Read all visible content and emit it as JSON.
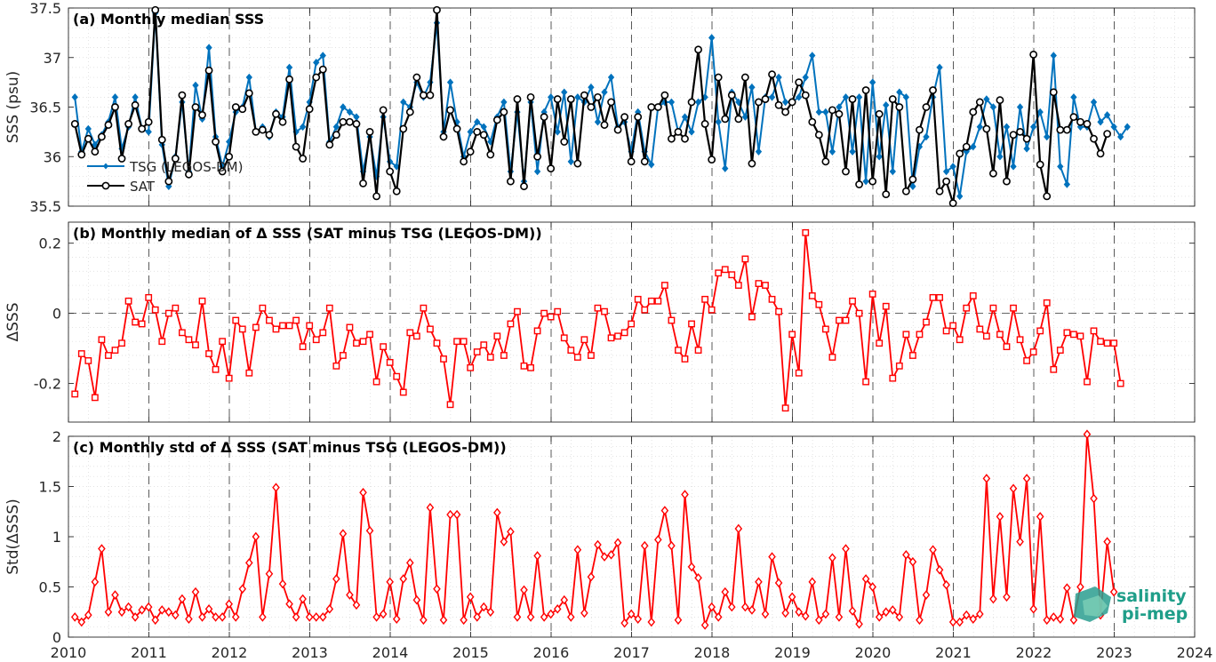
{
  "logo": {
    "line1": "salinity",
    "line2": "pi-mep",
    "color": "#1f9e89"
  },
  "x_axis": {
    "min": 2010,
    "max": 2024,
    "ticks": [
      2010,
      2011,
      2012,
      2013,
      2014,
      2015,
      2016,
      2017,
      2018,
      2019,
      2020,
      2021,
      2022,
      2023,
      2024
    ],
    "tick_labels": [
      "2010",
      "2011",
      "2012",
      "2013",
      "2014",
      "2015",
      "2016",
      "2017",
      "2018",
      "2019",
      "2020",
      "2021",
      "2022",
      "2023",
      "2024"
    ]
  },
  "chart_data": [
    {
      "type": "line",
      "title": "(a) Monthly median SSS",
      "ylabel": "SSS (psu)",
      "ylim": [
        35.5,
        37.5
      ],
      "yticks": [
        35.5,
        36,
        36.5,
        37,
        37.5
      ],
      "ytick_labels": [
        "35.5",
        "36",
        "36.5",
        "37",
        "37.5"
      ],
      "grid": true,
      "legend": {
        "placement": "left-middle",
        "entries": [
          "TSG (LEGOS-DM)",
          "SAT"
        ]
      },
      "series": [
        {
          "name": "TSG (LEGOS-DM)",
          "color": "#0072bd",
          "marker": "diamond",
          "values": [
            36.6,
            36.05,
            36.28,
            36.12,
            36.22,
            36.35,
            36.6,
            36.08,
            36.3,
            36.6,
            36.28,
            36.25,
            37.45,
            36.12,
            35.7,
            36.0,
            36.55,
            35.85,
            36.72,
            36.38,
            37.1,
            36.2,
            35.9,
            36.15,
            36.45,
            36.5,
            36.8,
            36.25,
            36.3,
            36.2,
            36.45,
            36.4,
            36.9,
            36.25,
            36.3,
            36.55,
            36.95,
            37.02,
            36.15,
            36.3,
            36.5,
            36.45,
            36.4,
            35.85,
            36.2,
            35.8,
            36.4,
            35.95,
            35.9,
            36.55,
            36.5,
            36.75,
            36.6,
            36.75,
            37.35,
            36.25,
            36.75,
            36.35,
            36.0,
            36.25,
            36.35,
            36.3,
            36.15,
            36.4,
            36.55,
            35.85,
            36.45,
            35.75,
            36.55,
            35.85,
            36.45,
            36.6,
            36.25,
            36.65,
            35.95,
            36.6,
            36.55,
            36.7,
            36.35,
            36.65,
            36.8,
            36.3,
            36.35,
            36.05,
            36.45,
            36.05,
            35.92,
            36.5,
            36.55,
            36.55,
            36.25,
            36.4,
            36.25,
            36.55,
            36.6,
            37.2,
            36.35,
            35.88,
            36.65,
            36.55,
            36.4,
            36.7,
            36.05,
            36.6,
            36.6,
            36.8,
            36.55,
            36.55,
            36.6,
            36.8,
            37.02,
            36.45,
            36.45,
            36.05,
            36.5,
            36.6,
            36.05,
            36.6,
            35.75,
            36.75,
            36.0,
            36.52,
            35.85,
            36.65,
            36.6,
            35.7,
            36.1,
            36.2,
            36.6,
            36.9,
            35.85,
            35.9,
            35.6,
            36.05,
            36.1,
            36.3,
            36.58,
            36.5,
            36.0,
            36.3,
            35.9,
            36.5,
            36.08,
            36.3,
            36.45,
            36.2,
            37.02,
            35.9,
            35.72,
            36.6,
            36.3,
            36.3,
            36.55,
            36.35,
            36.42,
            36.3,
            36.2,
            36.3
          ],
          "x_start": 2010.08,
          "x_step": 0.08333
        },
        {
          "name": "SAT",
          "color": "#000000",
          "marker": "circle",
          "values": [
            36.33,
            36.02,
            36.18,
            36.05,
            36.2,
            36.32,
            36.5,
            35.98,
            36.33,
            36.52,
            36.28,
            36.35,
            37.48,
            36.17,
            35.75,
            35.98,
            36.62,
            35.82,
            36.5,
            36.42,
            36.87,
            36.15,
            35.85,
            36.0,
            36.5,
            36.48,
            36.64,
            36.25,
            36.27,
            36.22,
            36.43,
            36.35,
            36.78,
            36.1,
            35.98,
            36.48,
            36.8,
            36.88,
            36.12,
            36.22,
            36.35,
            36.35,
            36.33,
            35.73,
            36.25,
            35.6,
            36.47,
            35.85,
            35.65,
            36.28,
            36.45,
            36.8,
            36.62,
            36.62,
            37.48,
            36.2,
            36.47,
            36.28,
            35.95,
            36.05,
            36.25,
            36.22,
            36.02,
            36.37,
            36.45,
            35.75,
            36.58,
            35.7,
            36.6,
            36.0,
            36.4,
            35.88,
            36.58,
            36.15,
            36.58,
            35.93,
            36.62,
            36.5,
            36.6,
            36.32,
            36.55,
            36.27,
            36.4,
            35.95,
            36.4,
            35.95,
            36.5,
            36.5,
            36.62,
            36.18,
            36.25,
            36.18,
            36.55,
            37.08,
            36.33,
            35.97,
            36.8,
            36.38,
            36.62,
            36.38,
            36.8,
            35.93,
            36.55,
            36.58,
            36.83,
            36.52,
            36.45,
            36.55,
            36.75,
            36.62,
            36.35,
            36.22,
            35.95,
            36.47,
            36.43,
            35.85,
            36.58,
            35.72,
            36.67,
            35.75,
            36.43,
            35.62,
            36.58,
            36.5,
            35.65,
            35.77,
            36.27,
            36.5,
            36.67,
            35.65,
            35.75,
            35.53,
            36.03,
            36.1,
            36.45,
            36.55,
            36.28,
            35.83,
            36.57,
            35.75,
            36.22,
            36.25,
            36.18,
            37.03,
            35.92,
            35.6,
            36.65,
            36.27,
            36.27,
            36.4,
            36.35,
            36.33,
            36.18,
            36.03,
            36.23
          ],
          "x_start": 2010.08,
          "x_step": 0.08333
        }
      ]
    },
    {
      "type": "line",
      "title": "(b) Monthly median of Δ SSS (SAT minus TSG (LEGOS-DM))",
      "ylabel": "ΔSSS",
      "ylim": [
        -0.31,
        0.26
      ],
      "yticks": [
        -0.2,
        0,
        0.2
      ],
      "ytick_labels": [
        "-0.2",
        "0",
        "0.2"
      ],
      "grid": true,
      "series": [
        {
          "name": "",
          "color": "#ff0000",
          "marker": "square",
          "values": [
            -0.23,
            -0.115,
            -0.135,
            -0.24,
            -0.075,
            -0.12,
            -0.105,
            -0.085,
            0.035,
            -0.025,
            -0.03,
            0.045,
            0.01,
            -0.08,
            0.0,
            0.015,
            -0.055,
            -0.075,
            -0.09,
            0.035,
            -0.115,
            -0.16,
            -0.08,
            -0.185,
            -0.02,
            -0.045,
            -0.17,
            -0.04,
            0.015,
            -0.02,
            -0.045,
            -0.035,
            -0.035,
            -0.02,
            -0.095,
            -0.035,
            -0.075,
            -0.055,
            0.015,
            -0.15,
            -0.12,
            -0.04,
            -0.085,
            -0.08,
            -0.06,
            -0.195,
            -0.095,
            -0.14,
            -0.18,
            -0.225,
            -0.055,
            -0.065,
            0.015,
            -0.045,
            -0.085,
            -0.13,
            -0.26,
            -0.08,
            -0.08,
            -0.155,
            -0.11,
            -0.09,
            -0.125,
            -0.065,
            -0.12,
            -0.03,
            0.005,
            -0.15,
            -0.155,
            -0.05,
            0.0,
            -0.01,
            0.005,
            -0.07,
            -0.105,
            -0.125,
            -0.075,
            -0.12,
            0.015,
            0.005,
            -0.07,
            -0.065,
            -0.055,
            -0.03,
            0.04,
            0.01,
            0.035,
            0.035,
            0.08,
            -0.02,
            -0.105,
            -0.13,
            -0.03,
            -0.105,
            0.04,
            0.01,
            0.115,
            0.125,
            0.11,
            0.08,
            0.155,
            -0.01,
            0.085,
            0.08,
            0.04,
            0.005,
            -0.27,
            -0.06,
            -0.17,
            0.23,
            0.05,
            0.025,
            -0.045,
            -0.125,
            -0.02,
            -0.02,
            0.035,
            0.0,
            -0.195,
            0.055,
            -0.085,
            0.02,
            -0.185,
            -0.15,
            -0.06,
            -0.12,
            -0.06,
            -0.025,
            0.045,
            0.045,
            -0.05,
            -0.035,
            -0.075,
            0.015,
            0.05,
            -0.045,
            -0.065,
            0.015,
            -0.06,
            -0.095,
            0.015,
            -0.075,
            -0.135,
            -0.11,
            -0.05,
            0.03,
            -0.16,
            -0.105,
            -0.055,
            -0.06,
            -0.065,
            -0.195,
            -0.05,
            -0.08,
            -0.085,
            -0.085,
            -0.2
          ],
          "x_start": 2010.08,
          "x_step": 0.08333
        }
      ]
    },
    {
      "type": "line",
      "title": "(c) Monthly std of Δ SSS (SAT minus TSG (LEGOS-DM))",
      "ylabel": "Std(ΔSSS)",
      "ylim": [
        0,
        2
      ],
      "yticks": [
        0,
        0.5,
        1,
        1.5,
        2
      ],
      "ytick_labels": [
        "0",
        "0.5",
        "1",
        "1.5",
        "2"
      ],
      "grid": true,
      "series": [
        {
          "name": "",
          "color": "#ff0000",
          "marker": "diamond",
          "values": [
            0.2,
            0.15,
            0.22,
            0.55,
            0.88,
            0.25,
            0.42,
            0.25,
            0.3,
            0.2,
            0.27,
            0.3,
            0.17,
            0.27,
            0.25,
            0.22,
            0.38,
            0.18,
            0.45,
            0.2,
            0.28,
            0.2,
            0.2,
            0.33,
            0.2,
            0.48,
            0.74,
            1.0,
            0.2,
            0.63,
            1.49,
            0.53,
            0.33,
            0.2,
            0.38,
            0.2,
            0.2,
            0.2,
            0.28,
            0.58,
            1.03,
            0.42,
            0.32,
            1.44,
            1.06,
            0.2,
            0.23,
            0.55,
            0.18,
            0.58,
            0.74,
            0.37,
            0.17,
            1.29,
            0.48,
            0.17,
            1.22,
            1.22,
            0.17,
            0.4,
            0.2,
            0.3,
            0.25,
            1.24,
            0.95,
            1.05,
            0.2,
            0.47,
            0.2,
            0.81,
            0.2,
            0.23,
            0.28,
            0.37,
            0.2,
            0.87,
            0.24,
            0.6,
            0.92,
            0.8,
            0.82,
            0.94,
            0.14,
            0.23,
            0.18,
            0.91,
            0.15,
            0.97,
            1.26,
            0.91,
            0.17,
            1.42,
            0.7,
            0.59,
            0.12,
            0.3,
            0.2,
            0.45,
            0.3,
            1.08,
            0.3,
            0.27,
            0.55,
            0.23,
            0.8,
            0.54,
            0.24,
            0.4,
            0.25,
            0.21,
            0.55,
            0.17,
            0.23,
            0.79,
            0.2,
            0.88,
            0.26,
            0.13,
            0.58,
            0.5,
            0.2,
            0.25,
            0.27,
            0.2,
            0.82,
            0.75,
            0.17,
            0.42,
            0.87,
            0.67,
            0.52,
            0.15,
            0.15,
            0.22,
            0.18,
            0.23,
            1.58,
            0.38,
            1.2,
            0.4,
            1.48,
            0.95,
            1.58,
            0.28,
            1.2,
            0.17,
            0.2,
            0.18,
            0.49,
            0.17,
            0.5,
            2.02,
            1.38,
            0.22,
            0.95,
            0.45
          ],
          "x_start": 2010.08,
          "x_step": 0.08333
        }
      ]
    }
  ]
}
